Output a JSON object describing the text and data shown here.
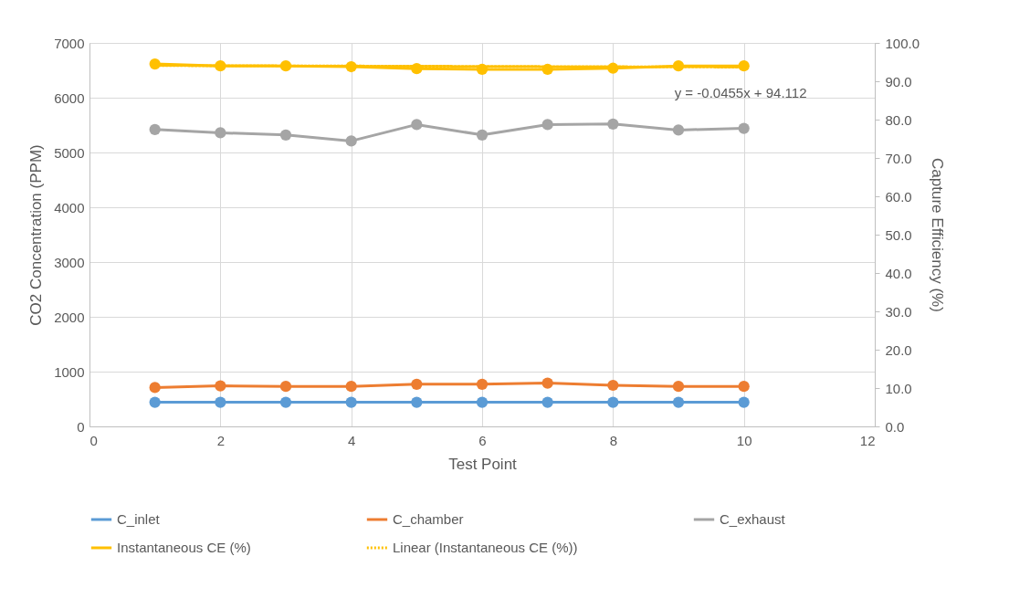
{
  "chart_data": {
    "type": "line",
    "xlabel": "Test Point",
    "ylabel": "CO2 Concentration (PPM)",
    "y2label": "Capture Efficiency (%)",
    "x": [
      1,
      2,
      3,
      4,
      5,
      6,
      7,
      8,
      9,
      10
    ],
    "xlim": [
      0,
      12
    ],
    "xticks": [
      0,
      2,
      4,
      6,
      8,
      10,
      12
    ],
    "ylim": [
      0,
      7000
    ],
    "yticks": [
      0,
      1000,
      2000,
      3000,
      4000,
      5000,
      6000,
      7000
    ],
    "y2lim": [
      0,
      100
    ],
    "y2ticks": [
      {
        "value": 0,
        "label": "0.0"
      },
      {
        "value": 10,
        "label": "10.0"
      },
      {
        "value": 20,
        "label": "20.0"
      },
      {
        "value": 30,
        "label": "30.0"
      },
      {
        "value": 40,
        "label": "40.0"
      },
      {
        "value": 50,
        "label": "50.0"
      },
      {
        "value": 60,
        "label": "60.0"
      },
      {
        "value": 70,
        "label": "70.0"
      },
      {
        "value": 80,
        "label": "80.0"
      },
      {
        "value": 90,
        "label": "90.0"
      },
      {
        "value": 100,
        "label": "100.0"
      }
    ],
    "grid": true,
    "legend": "bottom",
    "marker": "circle",
    "line_style": "solid",
    "series": [
      {
        "name": "C_inlet",
        "color": "#5b9bd5",
        "values": [
          440,
          440,
          440,
          440,
          440,
          440,
          440,
          440,
          440,
          440
        ]
      },
      {
        "name": "C_chamber",
        "color": "#ed7d31",
        "values": [
          710,
          740,
          730,
          730,
          770,
          770,
          790,
          750,
          730,
          730
        ]
      },
      {
        "name": "C_exhaust",
        "color": "#a5a5a5",
        "values": [
          5420,
          5360,
          5320,
          5210,
          5510,
          5320,
          5510,
          5520,
          5410,
          5440
        ]
      },
      {
        "name": "Instantaneous CE (%)",
        "color": "#ffc000",
        "axis": "y2",
        "values": [
          94.5,
          94.0,
          94.0,
          93.8,
          93.3,
          93.1,
          93.1,
          93.4,
          94.0,
          94.0
        ]
      },
      {
        "name": "Linear (Instantaneous CE (%))",
        "color": "#ffc000",
        "axis": "y2",
        "line_style": "dotted",
        "marker": "none",
        "x": [
          1,
          10
        ],
        "values": [
          94.1,
          93.7
        ]
      }
    ],
    "annotations": [
      "y = -0.0455x + 94.112"
    ]
  }
}
